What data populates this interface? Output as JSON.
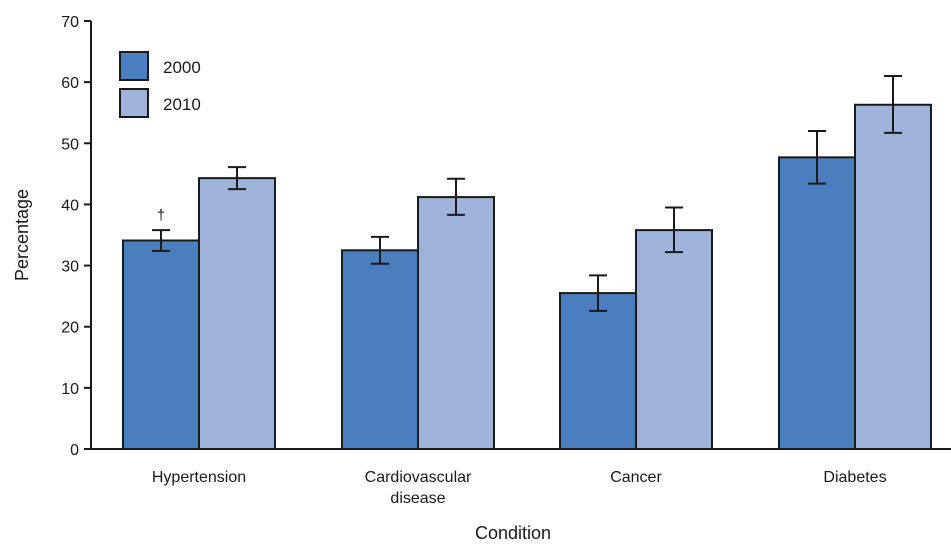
{
  "chart_data": {
    "type": "bar",
    "title": "",
    "xlabel": "Condition",
    "ylabel": "Percentage",
    "ylim": [
      0,
      70
    ],
    "yticks": [
      0,
      10,
      20,
      30,
      40,
      50,
      60,
      70
    ],
    "categories": [
      [
        "Hypertension"
      ],
      [
        "Cardiovascular",
        "disease"
      ],
      [
        "Cancer"
      ],
      [
        "Diabetes"
      ]
    ],
    "series": [
      {
        "name": "2000",
        "color": "#4a7ebf",
        "values": [
          34.1,
          32.5,
          25.5,
          47.7
        ],
        "error_low": [
          32.4,
          30.3,
          22.6,
          43.4
        ],
        "error_high": [
          35.8,
          34.7,
          28.4,
          52.0
        ]
      },
      {
        "name": "2010",
        "color": "#9fb2da",
        "values": [
          44.3,
          41.2,
          35.8,
          56.3
        ],
        "error_low": [
          42.5,
          38.3,
          32.2,
          51.7
        ],
        "error_high": [
          46.1,
          44.2,
          39.5,
          61.0
        ]
      }
    ],
    "annotations": [
      {
        "text": "†",
        "series": 0,
        "category": 0
      }
    ],
    "legend": {
      "position": "top-left"
    },
    "grid": false
  }
}
